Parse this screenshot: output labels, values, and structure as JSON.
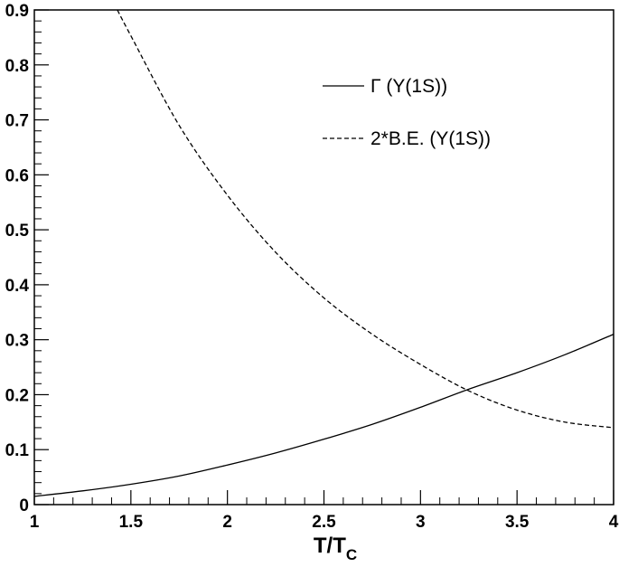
{
  "chart_data": {
    "type": "line",
    "xlabel": "T/T",
    "xlabel_sub": "C",
    "ylabel": "",
    "xlim": [
      1,
      4
    ],
    "ylim": [
      0,
      0.9
    ],
    "x_ticks": [
      "1",
      "1.5",
      "2",
      "2.5",
      "3",
      "3.5",
      "4"
    ],
    "y_ticks": [
      "0",
      "0.1",
      "0.2",
      "0.3",
      "0.4",
      "0.5",
      "0.6",
      "0.7",
      "0.8",
      "0.9"
    ],
    "grid": false,
    "legend_position": "top-right",
    "series": [
      {
        "name": "Γ (Υ(1S))",
        "style": "solid",
        "x": [
          1.0,
          1.25,
          1.5,
          1.75,
          2.0,
          2.25,
          2.5,
          2.75,
          3.0,
          3.25,
          3.5,
          3.75,
          4.0
        ],
        "y": [
          0.015,
          0.025,
          0.037,
          0.052,
          0.072,
          0.094,
          0.119,
          0.146,
          0.177,
          0.21,
          0.24,
          0.273,
          0.31
        ]
      },
      {
        "name": "2*B.E. (Υ(1S))",
        "style": "dashed",
        "x": [
          1.43,
          1.5,
          1.75,
          2.0,
          2.25,
          2.5,
          2.75,
          3.0,
          3.25,
          3.5,
          3.75,
          4.0
        ],
        "y": [
          0.9,
          0.853,
          0.69,
          0.563,
          0.459,
          0.376,
          0.31,
          0.255,
          0.207,
          0.172,
          0.15,
          0.14
        ]
      }
    ]
  }
}
